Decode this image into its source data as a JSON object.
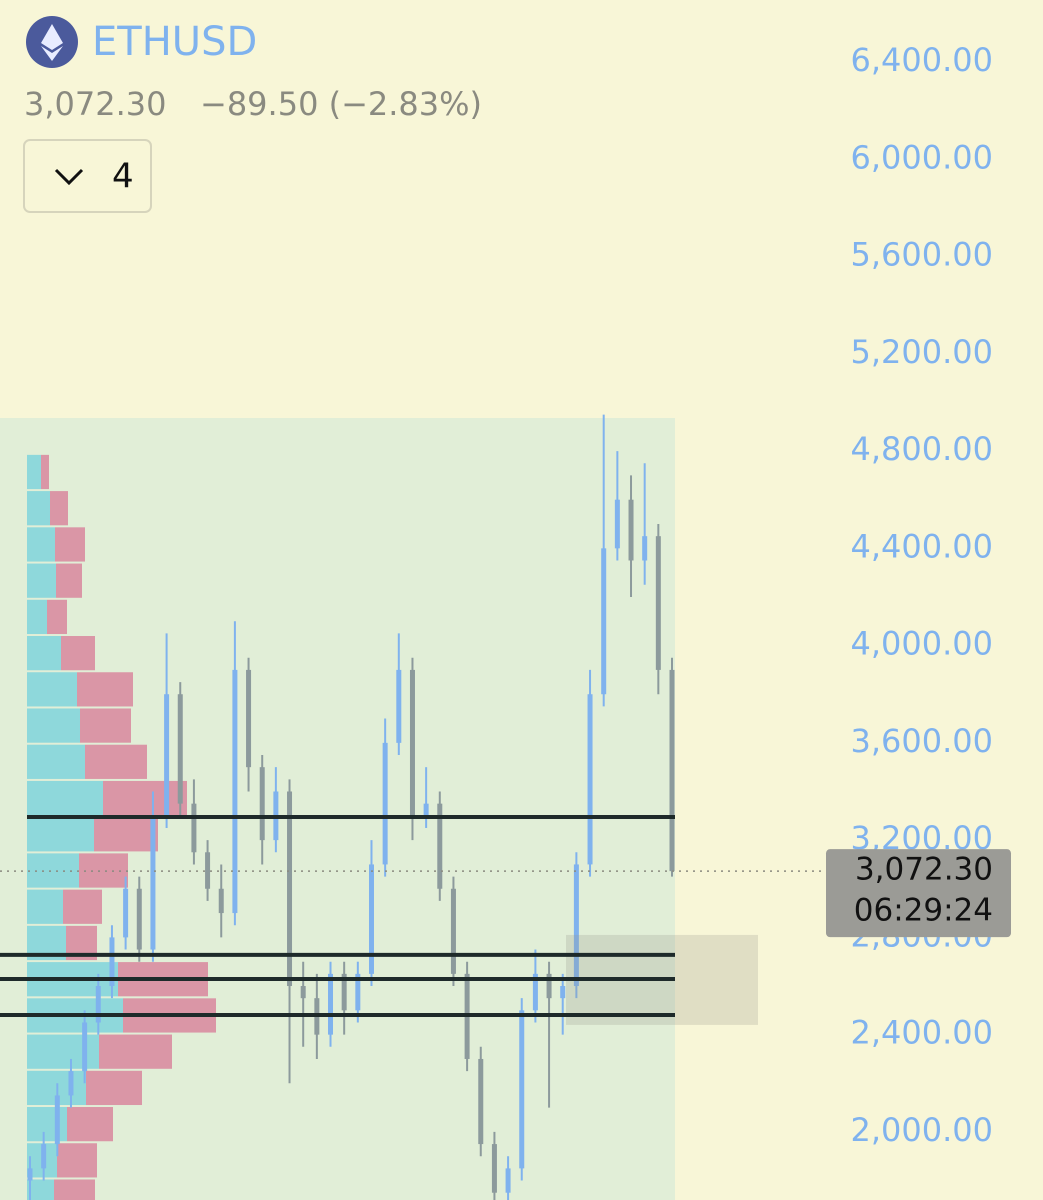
{
  "header": {
    "symbol": "ETHUSD",
    "price": "3,072.30",
    "change": "−89.50 (−2.83%)",
    "interval": "4"
  },
  "chart_data": {
    "type": "candlestick",
    "up_color": "#7fb2ee",
    "down_color": "#8c9a9c",
    "open": [
      1800,
      1850,
      1950,
      2150,
      2250,
      2450,
      2600,
      2800,
      3000,
      2750,
      3300,
      3800,
      3350,
      3150,
      3000,
      2900,
      3900,
      3500,
      3200,
      3400,
      2600,
      2550,
      2400,
      2650,
      2500,
      2650,
      3100,
      3600,
      3900,
      3300,
      3350,
      3000,
      2650,
      2300,
      1950,
      1750,
      1850,
      2500,
      2650,
      2550,
      2600,
      3100,
      3800,
      4400,
      4600,
      4350,
      4450,
      3900
    ],
    "high": [
      1900,
      2000,
      2200,
      2300,
      2500,
      2650,
      2850,
      3050,
      3050,
      3400,
      4050,
      3850,
      3450,
      3200,
      3100,
      4100,
      3950,
      3550,
      3500,
      3450,
      2700,
      2650,
      2700,
      2700,
      2700,
      3200,
      3700,
      4050,
      3950,
      3500,
      3400,
      3050,
      2700,
      2350,
      2000,
      1900,
      2550,
      2750,
      2700,
      2650,
      3150,
      3900,
      4950,
      4800,
      4700,
      4750,
      4500,
      3950
    ],
    "low": [
      1720,
      1800,
      1900,
      2100,
      2200,
      2400,
      2550,
      2750,
      2700,
      2700,
      3250,
      3300,
      3100,
      2950,
      2800,
      2850,
      3400,
      3100,
      3150,
      2200,
      2350,
      2300,
      2350,
      2400,
      2450,
      2600,
      3050,
      3550,
      3200,
      3250,
      2950,
      2600,
      2250,
      1900,
      1720,
      1720,
      1800,
      2450,
      2100,
      2400,
      2550,
      3050,
      3750,
      4350,
      4200,
      4250,
      3800,
      3050
    ],
    "close": [
      1850,
      1950,
      2150,
      2250,
      2450,
      2600,
      2800,
      3000,
      2750,
      3300,
      3800,
      3350,
      3150,
      3000,
      2900,
      3900,
      3500,
      3200,
      3400,
      2600,
      2550,
      2400,
      2650,
      2500,
      2650,
      3100,
      3600,
      3900,
      3300,
      3350,
      3000,
      2650,
      2300,
      1950,
      1750,
      1850,
      2500,
      2650,
      2550,
      2600,
      3100,
      3800,
      4400,
      4600,
      4350,
      4450,
      3900,
      3072.3
    ],
    "ylim": [
      1720,
      6655
    ],
    "yticks": [
      {
        "value": 2000,
        "label": "2,000.00"
      },
      {
        "value": 2400,
        "label": "2,400.00"
      },
      {
        "value": 2800,
        "label": "2,800.00"
      },
      {
        "value": 3200,
        "label": "3,200.00"
      },
      {
        "value": 3600,
        "label": "3,600.00"
      },
      {
        "value": 4000,
        "label": "4,000.00"
      },
      {
        "value": 4400,
        "label": "4,400.00"
      },
      {
        "value": 4800,
        "label": "4,800.00"
      },
      {
        "value": 5200,
        "label": "5,200.00"
      },
      {
        "value": 5600,
        "label": "5,600.00"
      },
      {
        "value": 6000,
        "label": "6,000.00"
      },
      {
        "value": 6400,
        "label": "6,400.00"
      }
    ],
    "last_price": {
      "value": 3072.3,
      "label": "3,072.30",
      "countdown": "06:29:24"
    },
    "levels": [
      3295,
      2728,
      2629,
      2481
    ],
    "zone": [
      2440,
      2810
    ],
    "volume_profile": {
      "up_color": "#7fd3dc",
      "down_color": "#d8809a",
      "xlim": [
        0,
        648
      ],
      "prices": [
        4714,
        4565,
        4416,
        4267,
        4118,
        3969,
        3820,
        3671,
        3522,
        3373,
        3224,
        3075,
        2926,
        2777,
        2628,
        2479,
        2330,
        2181,
        2032,
        1883,
        1734
      ],
      "up": [
        14,
        23,
        28,
        29,
        20,
        34,
        50,
        53,
        58,
        76,
        67,
        52,
        36,
        39,
        91,
        96,
        72,
        59,
        40,
        30,
        27
      ],
      "down": [
        8,
        18,
        30,
        26,
        20,
        34,
        56,
        51,
        62,
        84,
        64,
        49,
        39,
        31,
        90,
        93,
        73,
        56,
        46,
        40,
        41
      ]
    }
  }
}
